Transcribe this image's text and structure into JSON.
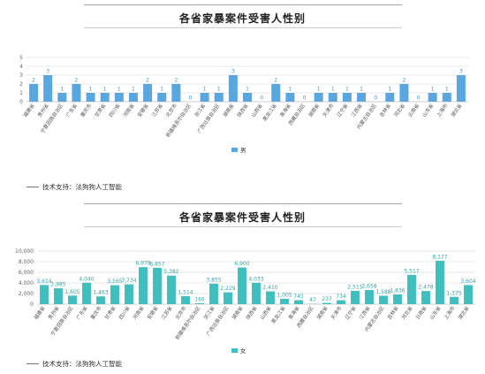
{
  "footer_text": "技术支持：法狗狗人工智能",
  "chart_data": [
    {
      "type": "bar",
      "title": "各省家暴案件受害人性别",
      "ylim": [
        0,
        5
      ],
      "yticks": [
        0,
        1,
        2,
        3,
        4,
        5
      ],
      "grid": true,
      "legend_position": "bottom-center",
      "color": "#5aa6e0",
      "label_color": "#4a96d8",
      "categories": [
        "福建省",
        "贵州省",
        "宁夏回族自治区",
        "广东省",
        "重庆市",
        "甘肃省",
        "四川省",
        "河南省",
        "安徽省",
        "江苏省",
        "北京市",
        "新疆维吾尔自治区",
        "浙江省",
        "广西壮族自治区",
        "湖南省",
        "陕西省",
        "山西省",
        "黑龙江省",
        "青海省",
        "西藏自治区",
        "湖南省",
        "天津市",
        "辽宁省",
        "江西省",
        "内蒙古自治区",
        "吉林省",
        "河北省",
        "云南省",
        "山东省",
        "上海市",
        "湖北省"
      ],
      "series": [
        {
          "name": "男",
          "values": [
            2,
            3,
            1,
            2,
            1,
            1,
            1,
            1,
            2,
            1,
            2,
            0,
            1,
            1,
            3,
            1,
            0,
            2,
            1,
            0,
            1,
            1,
            1,
            1,
            0,
            1,
            2,
            0,
            1,
            1,
            3
          ]
        }
      ]
    },
    {
      "type": "bar",
      "title": "各省家暴案件受害人性别",
      "ylim": [
        0,
        10000
      ],
      "yticks": [
        0,
        2000,
        4000,
        6000,
        8000,
        10000
      ],
      "ytick_labels": [
        "0",
        "2,000",
        "4,000",
        "6,000",
        "8,000",
        "10,000"
      ],
      "grid": true,
      "legend_position": "bottom-center",
      "color": "#3fbfbd",
      "label_color": "#2fa8a6",
      "categories": [
        "福建省",
        "贵州省",
        "宁夏回族自治区",
        "广东省",
        "重庆市",
        "甘肃省",
        "四川省",
        "河南省",
        "安徽省",
        "江苏省",
        "北京市",
        "新疆维吾尔自治区",
        "浙江省",
        "广西壮族自治区",
        "湖南省",
        "陕西省",
        "山西省",
        "黑龙江省",
        "青海省",
        "西藏自治区",
        "湖南省",
        "天津市",
        "辽宁省",
        "江西省",
        "内蒙古自治区",
        "吉林省",
        "河北省",
        "云南省",
        "山东省",
        "上海市",
        "湖北省"
      ],
      "series": [
        {
          "name": "女",
          "values": [
            3614,
            2985,
            1605,
            4040,
            1463,
            3565,
            3734,
            6978,
            6857,
            5382,
            1514,
            166,
            3855,
            2229,
            6900,
            4033,
            2410,
            1005,
            745,
            47,
            237,
            734,
            2511,
            2658,
            1588,
            1836,
            5517,
            2478,
            8177,
            1375,
            3604
          ]
        }
      ],
      "data_labels": [
        "3,614",
        "2,985",
        "1,605",
        "4,040",
        "1,463",
        "3,565",
        "3,734",
        "6,978",
        "6,857",
        "5,382",
        "1,514",
        "166",
        "3,855",
        "2,229",
        "6,900",
        "4,033",
        "2,410",
        "1,005",
        "745",
        "47",
        "237",
        "734",
        "2,511",
        "2,658",
        "1,588",
        "1,836",
        "5,517",
        "2,478",
        "8,177",
        "1,375",
        "3,604"
      ]
    }
  ]
}
